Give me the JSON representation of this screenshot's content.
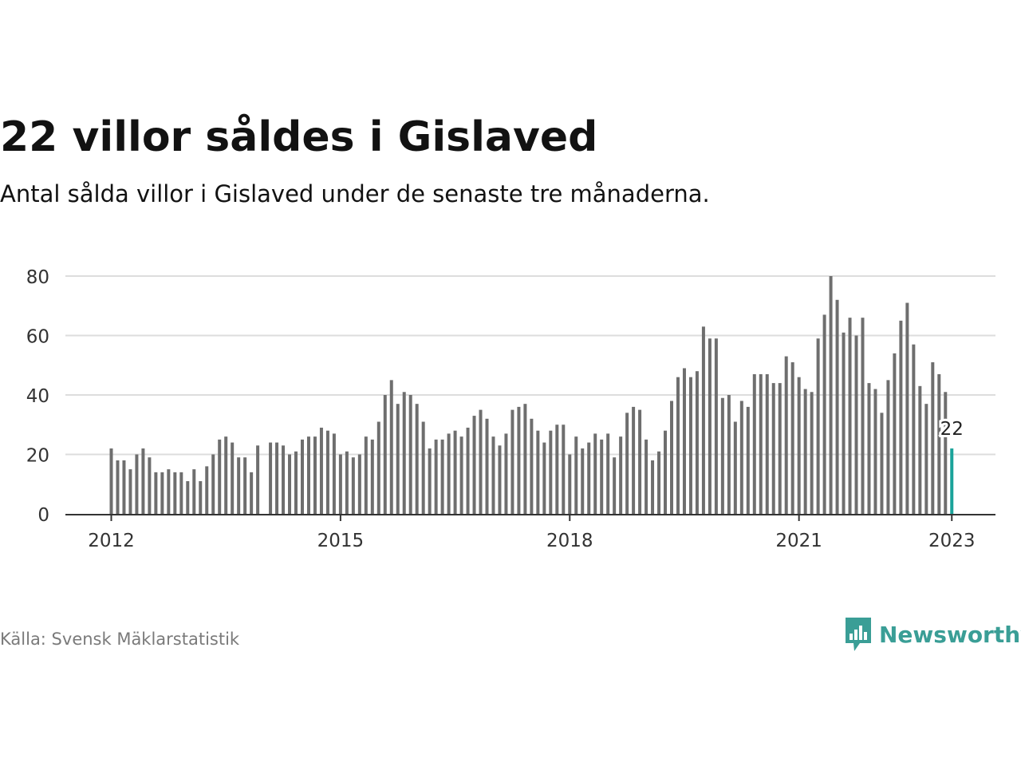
{
  "title": "22 villor såldes i Gislaved",
  "subtitle": "Antal sålda villor i Gislaved under de senaste tre månaderna.",
  "source": "Källa: Svensk Mäklarstatistik",
  "logo": {
    "text": "Newsworthy",
    "icon": "newsworthy-logo-icon"
  },
  "colors": {
    "bar": "#6e6e6e",
    "highlight": "#1aa39a",
    "grid": "#dddddd",
    "axis": "#333333",
    "brand": "#3a9e96"
  },
  "chart_data": {
    "type": "bar",
    "ylim": [
      0,
      80
    ],
    "yticks": [
      0,
      20,
      40,
      60,
      80
    ],
    "xticks": [
      "2012",
      "2015",
      "2018",
      "2021",
      "2023"
    ],
    "xtick_index": [
      0,
      36,
      72,
      108,
      132
    ],
    "grid": true,
    "highlight_label": "22",
    "values": [
      22,
      18,
      18,
      15,
      20,
      22,
      19,
      14,
      14,
      15,
      14,
      14,
      11,
      15,
      11,
      16,
      20,
      25,
      26,
      24,
      19,
      19,
      14,
      23,
      null,
      24,
      24,
      23,
      20,
      21,
      25,
      26,
      26,
      29,
      28,
      27,
      20,
      21,
      19,
      20,
      26,
      25,
      31,
      40,
      45,
      37,
      41,
      40,
      37,
      31,
      22,
      25,
      25,
      27,
      28,
      26,
      29,
      33,
      35,
      32,
      26,
      23,
      27,
      35,
      36,
      37,
      32,
      28,
      24,
      28,
      30,
      30,
      20,
      26,
      22,
      24,
      27,
      25,
      27,
      19,
      26,
      34,
      36,
      35,
      25,
      18,
      21,
      28,
      38,
      46,
      49,
      46,
      48,
      63,
      59,
      59,
      39,
      40,
      31,
      38,
      36,
      47,
      47,
      47,
      44,
      44,
      53,
      51,
      46,
      42,
      41,
      59,
      67,
      80,
      72,
      61,
      66,
      60,
      66,
      44,
      42,
      34,
      45,
      54,
      65,
      71,
      57,
      43,
      37,
      51,
      47,
      41,
      22
    ]
  }
}
